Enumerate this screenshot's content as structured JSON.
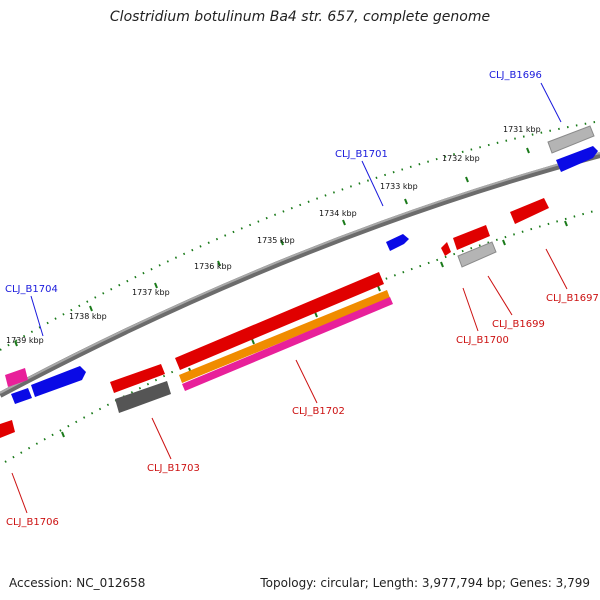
{
  "title": "Clostridium botulinum Ba4 str. 657, complete genome",
  "footer": {
    "accession": "Accession: NC_012658",
    "summary": "Topology: circular; Length: 3,977,794 bp; Genes: 3,799"
  },
  "scale": {
    "unit": "kbp",
    "ticks": [
      "1731 kbp",
      "1732 kbp",
      "1733 kbp",
      "1734 kbp",
      "1735 kbp",
      "1736 kbp",
      "1737 kbp",
      "1738 kbp",
      "1739 kbp"
    ]
  },
  "gene_labels": [
    {
      "text": "CLJ_B1696",
      "strand": "forward"
    },
    {
      "text": "CLJ_B1701",
      "strand": "forward"
    },
    {
      "text": "CLJ_B1704",
      "strand": "forward"
    },
    {
      "text": "CLJ_B1697",
      "strand": "reverse"
    },
    {
      "text": "CLJ_B1699",
      "strand": "reverse"
    },
    {
      "text": "CLJ_B1700",
      "strand": "reverse"
    },
    {
      "text": "CLJ_B1702",
      "strand": "reverse"
    },
    {
      "text": "CLJ_B1703",
      "strand": "reverse"
    },
    {
      "text": "CLJ_B1706",
      "strand": "reverse"
    }
  ],
  "colors": {
    "backbone": "#7a7a7a",
    "forward_gene": "#0a0ae6",
    "reverse_gene": "#e00000",
    "magenta_gene": "#e8209a",
    "orange_gene": "#f08c00",
    "gray_gene": "#b4b4b4",
    "dark_gray_gene": "#555555",
    "tick": "#1a7a1a",
    "forward_label": "#1a1adc",
    "reverse_label": "#cc1111"
  }
}
